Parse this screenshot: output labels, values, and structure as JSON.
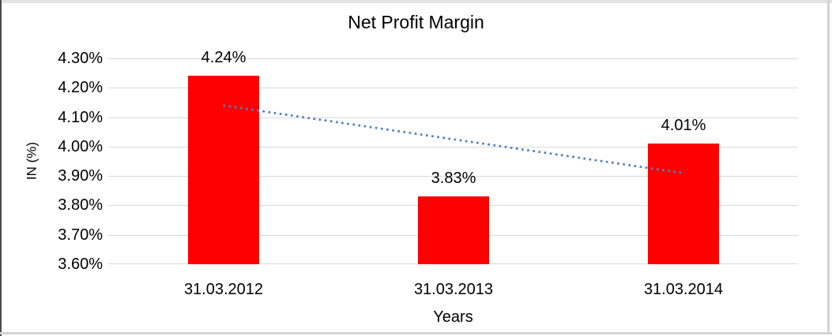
{
  "frame": {
    "background": "#FFFFFF",
    "border_dark": "#4a4a4a",
    "border_light": "#d3d3d3",
    "top_strip": "#e3e3e3"
  },
  "chart_data": {
    "type": "bar",
    "title": "Net Profit Margin",
    "xlabel": "Years",
    "ylabel": "IN (%)",
    "categories": [
      "31.03.2012",
      "31.03.2013",
      "31.03.2014"
    ],
    "values": [
      4.24,
      3.83,
      4.01
    ],
    "value_labels": [
      "4.24%",
      "3.83%",
      "4.01%"
    ],
    "ylim": [
      3.6,
      4.3
    ],
    "ytick_step": 0.1,
    "ytick_labels": [
      "4.30%",
      "4.20%",
      "4.10%",
      "4.00%",
      "3.90%",
      "3.80%",
      "3.70%",
      "3.60%"
    ],
    "grid": true,
    "legend": "none",
    "bar_color": "#FF0000",
    "gridline_color": "#D9D9D9",
    "text_color": "#000000",
    "trendline": {
      "style": "dotted",
      "color": "#4F81BD",
      "start_value": 4.14,
      "end_value": 3.91
    }
  }
}
